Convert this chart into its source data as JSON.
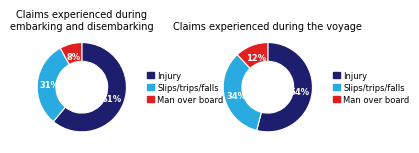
{
  "chart1": {
    "title": "Claims experienced during\nembarking and disembarking",
    "values": [
      61,
      31,
      8
    ],
    "labels": [
      "61%",
      "31%",
      "8%"
    ],
    "colors": [
      "#1e1e6e",
      "#29abe2",
      "#e02020"
    ],
    "legend_labels": [
      "Injury",
      "Slips/trips/falls",
      "Man over board"
    ]
  },
  "chart2": {
    "title": "Claims experienced during the voyage",
    "values": [
      54,
      34,
      12
    ],
    "labels": [
      "54%",
      "34%",
      "12%"
    ],
    "colors": [
      "#1e1e6e",
      "#29abe2",
      "#e02020"
    ],
    "legend_labels": [
      "Injury",
      "Slips/trips/falls",
      "Man over board"
    ]
  },
  "background_color": "#ffffff",
  "title_fontsize": 7.0,
  "label_fontsize": 6.0,
  "legend_fontsize": 6.0
}
